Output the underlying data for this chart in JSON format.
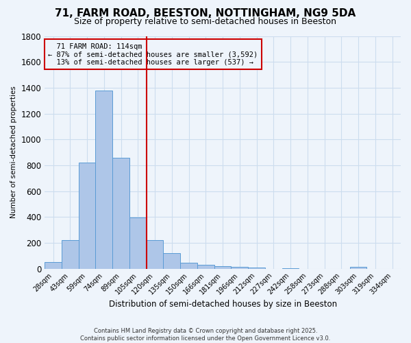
{
  "title": "71, FARM ROAD, BEESTON, NOTTINGHAM, NG9 5DA",
  "subtitle": "Size of property relative to semi-detached houses in Beeston",
  "xlabel": "Distribution of semi-detached houses by size in Beeston",
  "ylabel": "Number of semi-detached properties",
  "footer_line1": "Contains HM Land Registry data © Crown copyright and database right 2025.",
  "footer_line2": "Contains public sector information licensed under the Open Government Licence v3.0.",
  "bin_labels": [
    "28sqm",
    "43sqm",
    "59sqm",
    "74sqm",
    "89sqm",
    "105sqm",
    "120sqm",
    "135sqm",
    "150sqm",
    "166sqm",
    "181sqm",
    "196sqm",
    "212sqm",
    "227sqm",
    "242sqm",
    "258sqm",
    "273sqm",
    "288sqm",
    "303sqm",
    "319sqm",
    "334sqm"
  ],
  "bin_values": [
    50,
    220,
    820,
    1380,
    860,
    395,
    220,
    120,
    47,
    32,
    20,
    15,
    10,
    0,
    5,
    0,
    0,
    0,
    12,
    0,
    0
  ],
  "bar_color": "#AEC6E8",
  "bar_edge_color": "#5A9BD5",
  "property_label": "71 FARM ROAD: 114sqm",
  "pct_smaller": 87,
  "count_smaller": 3592,
  "pct_larger": 13,
  "count_larger": 537,
  "vline_color": "#CC0000",
  "vline_x_index": 6,
  "annotation_box_color": "#CC0000",
  "ylim": [
    0,
    1800
  ],
  "yticks": [
    0,
    200,
    400,
    600,
    800,
    1000,
    1200,
    1400,
    1600,
    1800
  ],
  "grid_color": "#CCDDEE",
  "bg_color": "#EEF4FB",
  "title_fontsize": 11,
  "subtitle_fontsize": 9
}
